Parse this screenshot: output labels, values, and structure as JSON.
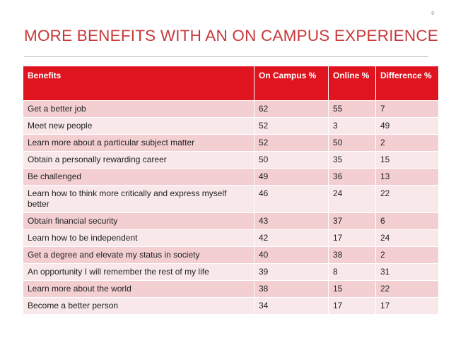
{
  "page_number": "9",
  "title": "MORE BENEFITS WITH AN ON CAMPUS EXPERIENCE",
  "table": {
    "headers": [
      "Benefits",
      "On Campus %",
      "Online %",
      "Difference %"
    ],
    "rows": [
      [
        "Get a better job",
        "62",
        "55",
        " 7"
      ],
      [
        "Meet new people",
        "52",
        "3",
        "49"
      ],
      [
        "Learn more about a particular subject matter",
        "52",
        "50",
        " 2"
      ],
      [
        "Obtain a personally rewarding career",
        "50",
        "35",
        "15"
      ],
      [
        "Be challenged",
        "49",
        "36",
        "13"
      ],
      [
        "Learn how to think more critically and express myself better",
        "46",
        "24",
        "22"
      ],
      [
        "Obtain financial security",
        "43",
        "37",
        " 6"
      ],
      [
        "Learn how to be independent",
        "42",
        "17",
        "24"
      ],
      [
        "Get a degree and elevate my status in society",
        "40",
        "38",
        " 2"
      ],
      [
        "An opportunity I will remember the rest of my life",
        "39",
        "8",
        "31"
      ],
      [
        "Learn more about the world",
        "38",
        "15",
        "22"
      ],
      [
        "Become a better person",
        "34",
        "17",
        "17"
      ]
    ]
  },
  "colors": {
    "accent": "#e0141f",
    "title": "#c8383b",
    "row_odd": "#f3cfd2",
    "row_even": "#f8e8e9"
  }
}
